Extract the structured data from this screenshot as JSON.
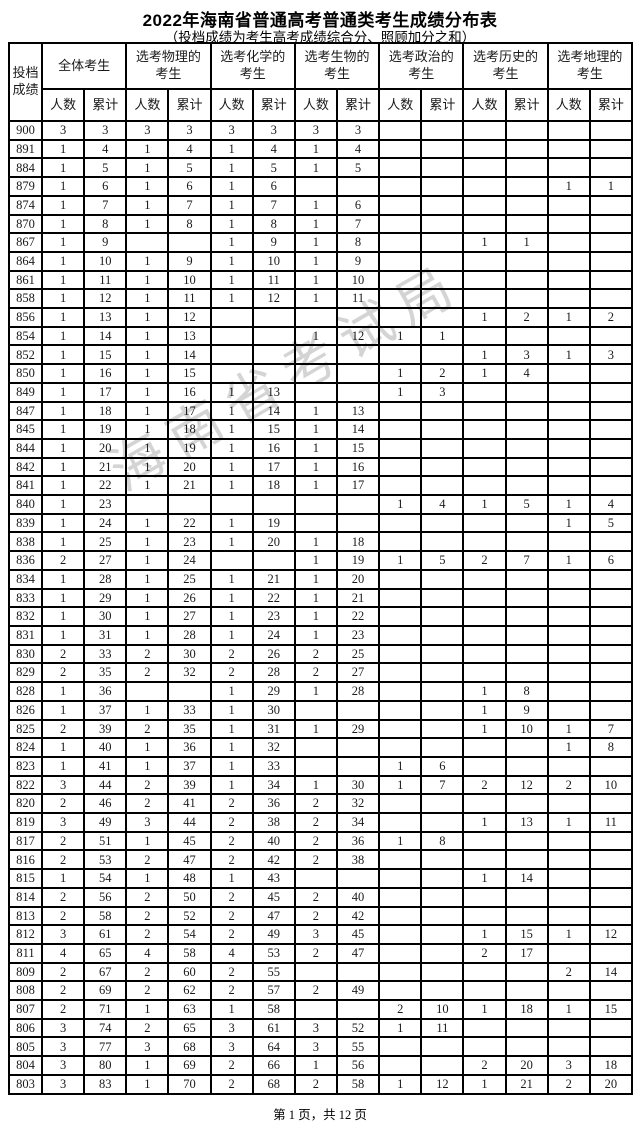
{
  "page": {
    "title": "2022年海南省普通高考普通类考生成绩分布表",
    "subtitle": "（投档成绩为考生高考成绩综合分、照顾加分之和）",
    "footer": "第 1 页，共 12 页",
    "watermark": "海南省考试局"
  },
  "table": {
    "score_header": "投档\n成绩",
    "groups": [
      "全体考生",
      "选考物理的\n考生",
      "选考化学的\n考生",
      "选考生物的\n考生",
      "选考政治的\n考生",
      "选考历史的\n考生",
      "选考地理的\n考生"
    ],
    "sub_headers": [
      "人数",
      "累计"
    ],
    "rows": [
      [
        "900",
        "3",
        "3",
        "3",
        "3",
        "3",
        "3",
        "3",
        "3",
        "",
        "",
        "",
        "",
        "",
        ""
      ],
      [
        "891",
        "1",
        "4",
        "1",
        "4",
        "1",
        "4",
        "1",
        "4",
        "",
        "",
        "",
        "",
        "",
        ""
      ],
      [
        "884",
        "1",
        "5",
        "1",
        "5",
        "1",
        "5",
        "1",
        "5",
        "",
        "",
        "",
        "",
        "",
        ""
      ],
      [
        "879",
        "1",
        "6",
        "1",
        "6",
        "1",
        "6",
        "",
        "",
        "",
        "",
        "",
        "",
        "1",
        "1"
      ],
      [
        "874",
        "1",
        "7",
        "1",
        "7",
        "1",
        "7",
        "1",
        "6",
        "",
        "",
        "",
        "",
        "",
        ""
      ],
      [
        "870",
        "1",
        "8",
        "1",
        "8",
        "1",
        "8",
        "1",
        "7",
        "",
        "",
        "",
        "",
        "",
        ""
      ],
      [
        "867",
        "1",
        "9",
        "",
        "",
        "1",
        "9",
        "1",
        "8",
        "",
        "",
        "1",
        "1",
        "",
        ""
      ],
      [
        "864",
        "1",
        "10",
        "1",
        "9",
        "1",
        "10",
        "1",
        "9",
        "",
        "",
        "",
        "",
        "",
        ""
      ],
      [
        "861",
        "1",
        "11",
        "1",
        "10",
        "1",
        "11",
        "1",
        "10",
        "",
        "",
        "",
        "",
        "",
        ""
      ],
      [
        "858",
        "1",
        "12",
        "1",
        "11",
        "1",
        "12",
        "1",
        "11",
        "",
        "",
        "",
        "",
        "",
        ""
      ],
      [
        "856",
        "1",
        "13",
        "1",
        "12",
        "",
        "",
        "",
        "",
        "",
        "",
        "1",
        "2",
        "1",
        "2"
      ],
      [
        "854",
        "1",
        "14",
        "1",
        "13",
        "",
        "",
        "1",
        "12",
        "1",
        "1",
        "",
        "",
        "",
        ""
      ],
      [
        "852",
        "1",
        "15",
        "1",
        "14",
        "",
        "",
        "",
        "",
        "",
        "",
        "1",
        "3",
        "1",
        "3"
      ],
      [
        "850",
        "1",
        "16",
        "1",
        "15",
        "",
        "",
        "",
        "",
        "1",
        "2",
        "1",
        "4",
        "",
        ""
      ],
      [
        "849",
        "1",
        "17",
        "1",
        "16",
        "1",
        "13",
        "",
        "",
        "1",
        "3",
        "",
        "",
        "",
        ""
      ],
      [
        "847",
        "1",
        "18",
        "1",
        "17",
        "1",
        "14",
        "1",
        "13",
        "",
        "",
        "",
        "",
        "",
        ""
      ],
      [
        "845",
        "1",
        "19",
        "1",
        "18",
        "1",
        "15",
        "1",
        "14",
        "",
        "",
        "",
        "",
        "",
        ""
      ],
      [
        "844",
        "1",
        "20",
        "1",
        "19",
        "1",
        "16",
        "1",
        "15",
        "",
        "",
        "",
        "",
        "",
        ""
      ],
      [
        "842",
        "1",
        "21",
        "1",
        "20",
        "1",
        "17",
        "1",
        "16",
        "",
        "",
        "",
        "",
        "",
        ""
      ],
      [
        "841",
        "1",
        "22",
        "1",
        "21",
        "1",
        "18",
        "1",
        "17",
        "",
        "",
        "",
        "",
        "",
        ""
      ],
      [
        "840",
        "1",
        "23",
        "",
        "",
        "",
        "",
        "",
        "",
        "1",
        "4",
        "1",
        "5",
        "1",
        "4"
      ],
      [
        "839",
        "1",
        "24",
        "1",
        "22",
        "1",
        "19",
        "",
        "",
        "",
        "",
        "",
        "",
        "1",
        "5"
      ],
      [
        "838",
        "1",
        "25",
        "1",
        "23",
        "1",
        "20",
        "1",
        "18",
        "",
        "",
        "",
        "",
        "",
        ""
      ],
      [
        "836",
        "2",
        "27",
        "1",
        "24",
        "",
        "",
        "1",
        "19",
        "1",
        "5",
        "2",
        "7",
        "1",
        "6"
      ],
      [
        "834",
        "1",
        "28",
        "1",
        "25",
        "1",
        "21",
        "1",
        "20",
        "",
        "",
        "",
        "",
        "",
        ""
      ],
      [
        "833",
        "1",
        "29",
        "1",
        "26",
        "1",
        "22",
        "1",
        "21",
        "",
        "",
        "",
        "",
        "",
        ""
      ],
      [
        "832",
        "1",
        "30",
        "1",
        "27",
        "1",
        "23",
        "1",
        "22",
        "",
        "",
        "",
        "",
        "",
        ""
      ],
      [
        "831",
        "1",
        "31",
        "1",
        "28",
        "1",
        "24",
        "1",
        "23",
        "",
        "",
        "",
        "",
        "",
        ""
      ],
      [
        "830",
        "2",
        "33",
        "2",
        "30",
        "2",
        "26",
        "2",
        "25",
        "",
        "",
        "",
        "",
        "",
        ""
      ],
      [
        "829",
        "2",
        "35",
        "2",
        "32",
        "2",
        "28",
        "2",
        "27",
        "",
        "",
        "",
        "",
        "",
        ""
      ],
      [
        "828",
        "1",
        "36",
        "",
        "",
        "1",
        "29",
        "1",
        "28",
        "",
        "",
        "1",
        "8",
        "",
        ""
      ],
      [
        "826",
        "1",
        "37",
        "1",
        "33",
        "1",
        "30",
        "",
        "",
        "",
        "",
        "1",
        "9",
        "",
        ""
      ],
      [
        "825",
        "2",
        "39",
        "2",
        "35",
        "1",
        "31",
        "1",
        "29",
        "",
        "",
        "1",
        "10",
        "1",
        "7"
      ],
      [
        "824",
        "1",
        "40",
        "1",
        "36",
        "1",
        "32",
        "",
        "",
        "",
        "",
        "",
        "",
        "1",
        "8"
      ],
      [
        "823",
        "1",
        "41",
        "1",
        "37",
        "1",
        "33",
        "",
        "",
        "1",
        "6",
        "",
        "",
        "",
        ""
      ],
      [
        "822",
        "3",
        "44",
        "2",
        "39",
        "1",
        "34",
        "1",
        "30",
        "1",
        "7",
        "2",
        "12",
        "2",
        "10"
      ],
      [
        "820",
        "2",
        "46",
        "2",
        "41",
        "2",
        "36",
        "2",
        "32",
        "",
        "",
        "",
        "",
        "",
        ""
      ],
      [
        "819",
        "3",
        "49",
        "3",
        "44",
        "2",
        "38",
        "2",
        "34",
        "",
        "",
        "1",
        "13",
        "1",
        "11"
      ],
      [
        "817",
        "2",
        "51",
        "1",
        "45",
        "2",
        "40",
        "2",
        "36",
        "1",
        "8",
        "",
        "",
        "",
        ""
      ],
      [
        "816",
        "2",
        "53",
        "2",
        "47",
        "2",
        "42",
        "2",
        "38",
        "",
        "",
        "",
        "",
        "",
        ""
      ],
      [
        "815",
        "1",
        "54",
        "1",
        "48",
        "1",
        "43",
        "",
        "",
        "",
        "",
        "1",
        "14",
        "",
        ""
      ],
      [
        "814",
        "2",
        "56",
        "2",
        "50",
        "2",
        "45",
        "2",
        "40",
        "",
        "",
        "",
        "",
        "",
        ""
      ],
      [
        "813",
        "2",
        "58",
        "2",
        "52",
        "2",
        "47",
        "2",
        "42",
        "",
        "",
        "",
        "",
        "",
        ""
      ],
      [
        "812",
        "3",
        "61",
        "2",
        "54",
        "2",
        "49",
        "3",
        "45",
        "",
        "",
        "1",
        "15",
        "1",
        "12"
      ],
      [
        "811",
        "4",
        "65",
        "4",
        "58",
        "4",
        "53",
        "2",
        "47",
        "",
        "",
        "2",
        "17",
        "",
        ""
      ],
      [
        "809",
        "2",
        "67",
        "2",
        "60",
        "2",
        "55",
        "",
        "",
        "",
        "",
        "",
        "",
        "2",
        "14"
      ],
      [
        "808",
        "2",
        "69",
        "2",
        "62",
        "2",
        "57",
        "2",
        "49",
        "",
        "",
        "",
        "",
        "",
        ""
      ],
      [
        "807",
        "2",
        "71",
        "1",
        "63",
        "1",
        "58",
        "",
        "",
        "2",
        "10",
        "1",
        "18",
        "1",
        "15"
      ],
      [
        "806",
        "3",
        "74",
        "2",
        "65",
        "3",
        "61",
        "3",
        "52",
        "1",
        "11",
        "",
        "",
        "",
        ""
      ],
      [
        "805",
        "3",
        "77",
        "3",
        "68",
        "3",
        "64",
        "3",
        "55",
        "",
        "",
        "",
        "",
        "",
        ""
      ],
      [
        "804",
        "3",
        "80",
        "1",
        "69",
        "2",
        "66",
        "1",
        "56",
        "",
        "",
        "2",
        "20",
        "3",
        "18"
      ],
      [
        "803",
        "3",
        "83",
        "1",
        "70",
        "2",
        "68",
        "2",
        "58",
        "1",
        "12",
        "1",
        "21",
        "2",
        "20"
      ]
    ]
  }
}
